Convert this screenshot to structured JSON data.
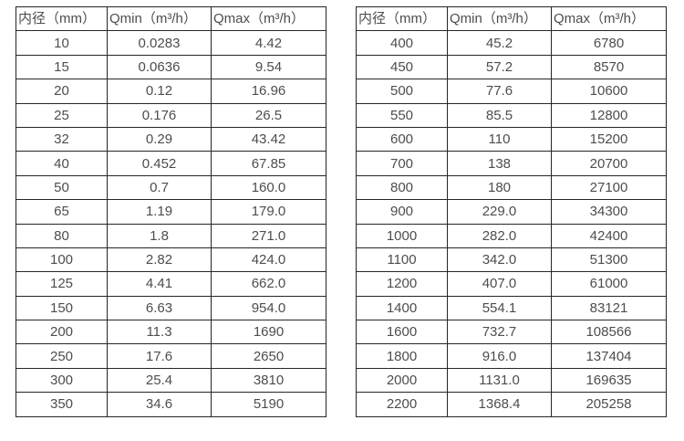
{
  "tables": [
    {
      "name": "flow-range-small-diameters",
      "headers": [
        "内径（mm）",
        "Qmin（m³/h）",
        "Qmax（m³/h）"
      ],
      "rows": [
        [
          "10",
          "0.0283",
          "4.42"
        ],
        [
          "15",
          "0.0636",
          "9.54"
        ],
        [
          "20",
          "0.12",
          "16.96"
        ],
        [
          "25",
          "0.176",
          "26.5"
        ],
        [
          "32",
          "0.29",
          "43.42"
        ],
        [
          "40",
          "0.452",
          "67.85"
        ],
        [
          "50",
          "0.7",
          "160.0"
        ],
        [
          "65",
          "1.19",
          "179.0"
        ],
        [
          "80",
          "1.8",
          "271.0"
        ],
        [
          "100",
          "2.82",
          "424.0"
        ],
        [
          "125",
          "4.41",
          "662.0"
        ],
        [
          "150",
          "6.63",
          "954.0"
        ],
        [
          "200",
          "11.3",
          "1690"
        ],
        [
          "250",
          "17.6",
          "2650"
        ],
        [
          "300",
          "25.4",
          "3810"
        ],
        [
          "350",
          "34.6",
          "5190"
        ]
      ]
    },
    {
      "name": "flow-range-large-diameters",
      "headers": [
        "内径（mm）",
        "Qmin（m³/h）",
        "Qmax（m³/h）"
      ],
      "rows": [
        [
          "400",
          "45.2",
          "6780"
        ],
        [
          "450",
          "57.2",
          "8570"
        ],
        [
          "500",
          "77.6",
          "10600"
        ],
        [
          "550",
          "85.5",
          "12800"
        ],
        [
          "600",
          "110",
          "15200"
        ],
        [
          "700",
          "138",
          "20700"
        ],
        [
          "800",
          "180",
          "27100"
        ],
        [
          "900",
          "229.0",
          "34300"
        ],
        [
          "1000",
          "282.0",
          "42400"
        ],
        [
          "1100",
          "342.0",
          "51300"
        ],
        [
          "1200",
          "407.0",
          "61000"
        ],
        [
          "1400",
          "554.1",
          "83121"
        ],
        [
          "1600",
          "732.7",
          "108566"
        ],
        [
          "1800",
          "916.0",
          "137404"
        ],
        [
          "2000",
          "1131.0",
          "169635"
        ],
        [
          "2200",
          "1368.4",
          "205258"
        ]
      ]
    }
  ],
  "colors": {
    "text": "#4d4d4d",
    "border": "#262626",
    "background": "#ffffff"
  }
}
